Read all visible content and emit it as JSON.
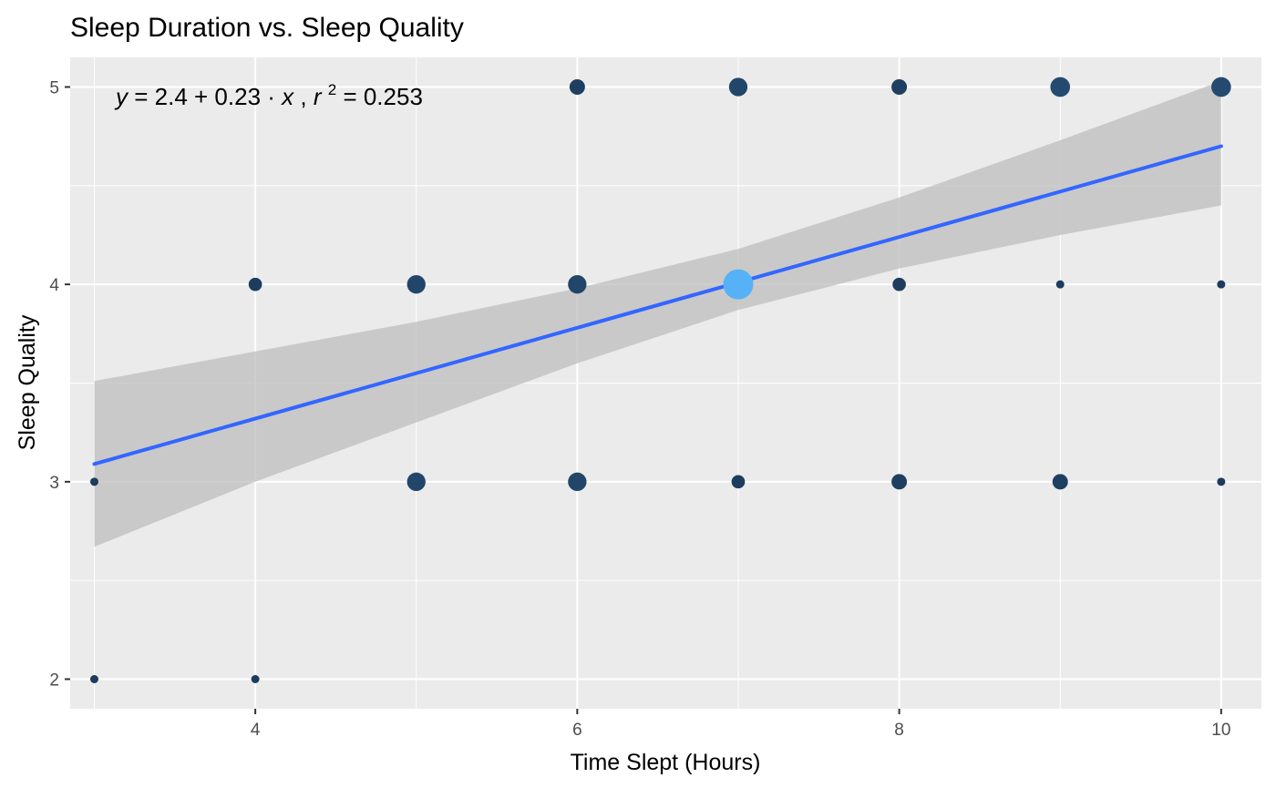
{
  "chart_data": {
    "type": "scatter",
    "title": "Sleep Duration vs. Sleep Quality",
    "xlabel": "Time Slept (Hours)",
    "ylabel": "Sleep Quality",
    "xlim": [
      2.85,
      10.25
    ],
    "ylim": [
      1.85,
      5.15
    ],
    "x_ticks": [
      4,
      6,
      8,
      10
    ],
    "x_tick_labels": [
      "4",
      "6",
      "8",
      "10"
    ],
    "y_ticks": [
      2,
      3,
      4,
      5
    ],
    "y_tick_labels": [
      "2",
      "3",
      "4",
      "5"
    ],
    "grid": true,
    "annotation": {
      "y_var": "y",
      "equals": "=",
      "rhs": "2.4 + 0.23 · ",
      "x_var": "x",
      "sep": ",  ",
      "r_var": "r",
      "r_exp": "2",
      "r_value": " = 0.253"
    },
    "points": [
      {
        "x": 3,
        "y": 2,
        "n": 1
      },
      {
        "x": 4,
        "y": 2,
        "n": 1
      },
      {
        "x": 3,
        "y": 3,
        "n": 1
      },
      {
        "x": 5,
        "y": 3,
        "n": 3
      },
      {
        "x": 6,
        "y": 3,
        "n": 3
      },
      {
        "x": 7,
        "y": 3,
        "n": 1.5
      },
      {
        "x": 8,
        "y": 3,
        "n": 2
      },
      {
        "x": 9,
        "y": 3,
        "n": 2
      },
      {
        "x": 10,
        "y": 3,
        "n": 1
      },
      {
        "x": 4,
        "y": 4,
        "n": 1.5
      },
      {
        "x": 5,
        "y": 4,
        "n": 3
      },
      {
        "x": 6,
        "y": 4,
        "n": 3
      },
      {
        "x": 7,
        "y": 4,
        "n": 10
      },
      {
        "x": 8,
        "y": 4,
        "n": 1.5
      },
      {
        "x": 9,
        "y": 4,
        "n": 1
      },
      {
        "x": 10,
        "y": 4,
        "n": 1
      },
      {
        "x": 6,
        "y": 5,
        "n": 2
      },
      {
        "x": 7,
        "y": 5,
        "n": 3
      },
      {
        "x": 8,
        "y": 5,
        "n": 2
      },
      {
        "x": 9,
        "y": 5,
        "n": 3.5
      },
      {
        "x": 10,
        "y": 5,
        "n": 3.5
      }
    ],
    "regression": {
      "intercept": 2.4,
      "slope": 0.23,
      "r2": 0.253,
      "x_range": [
        3,
        10
      ]
    },
    "confidence_band": [
      {
        "x": 3,
        "lower": 2.67,
        "upper": 3.51
      },
      {
        "x": 4,
        "lower": 3.0,
        "upper": 3.66
      },
      {
        "x": 5,
        "lower": 3.3,
        "upper": 3.81
      },
      {
        "x": 6,
        "lower": 3.6,
        "upper": 3.98
      },
      {
        "x": 7,
        "lower": 3.87,
        "upper": 4.18
      },
      {
        "x": 8,
        "lower": 4.08,
        "upper": 4.44
      },
      {
        "x": 9,
        "lower": 4.25,
        "upper": 4.73
      },
      {
        "x": 10,
        "lower": 4.4,
        "upper": 5.03
      }
    ],
    "colors": {
      "panel": "#ebebeb",
      "grid": "#ffffff",
      "line": "#3366ff",
      "band": "#bdbdbd",
      "point_low": "#1d3b5c",
      "point_high": "#56b1f7"
    }
  }
}
